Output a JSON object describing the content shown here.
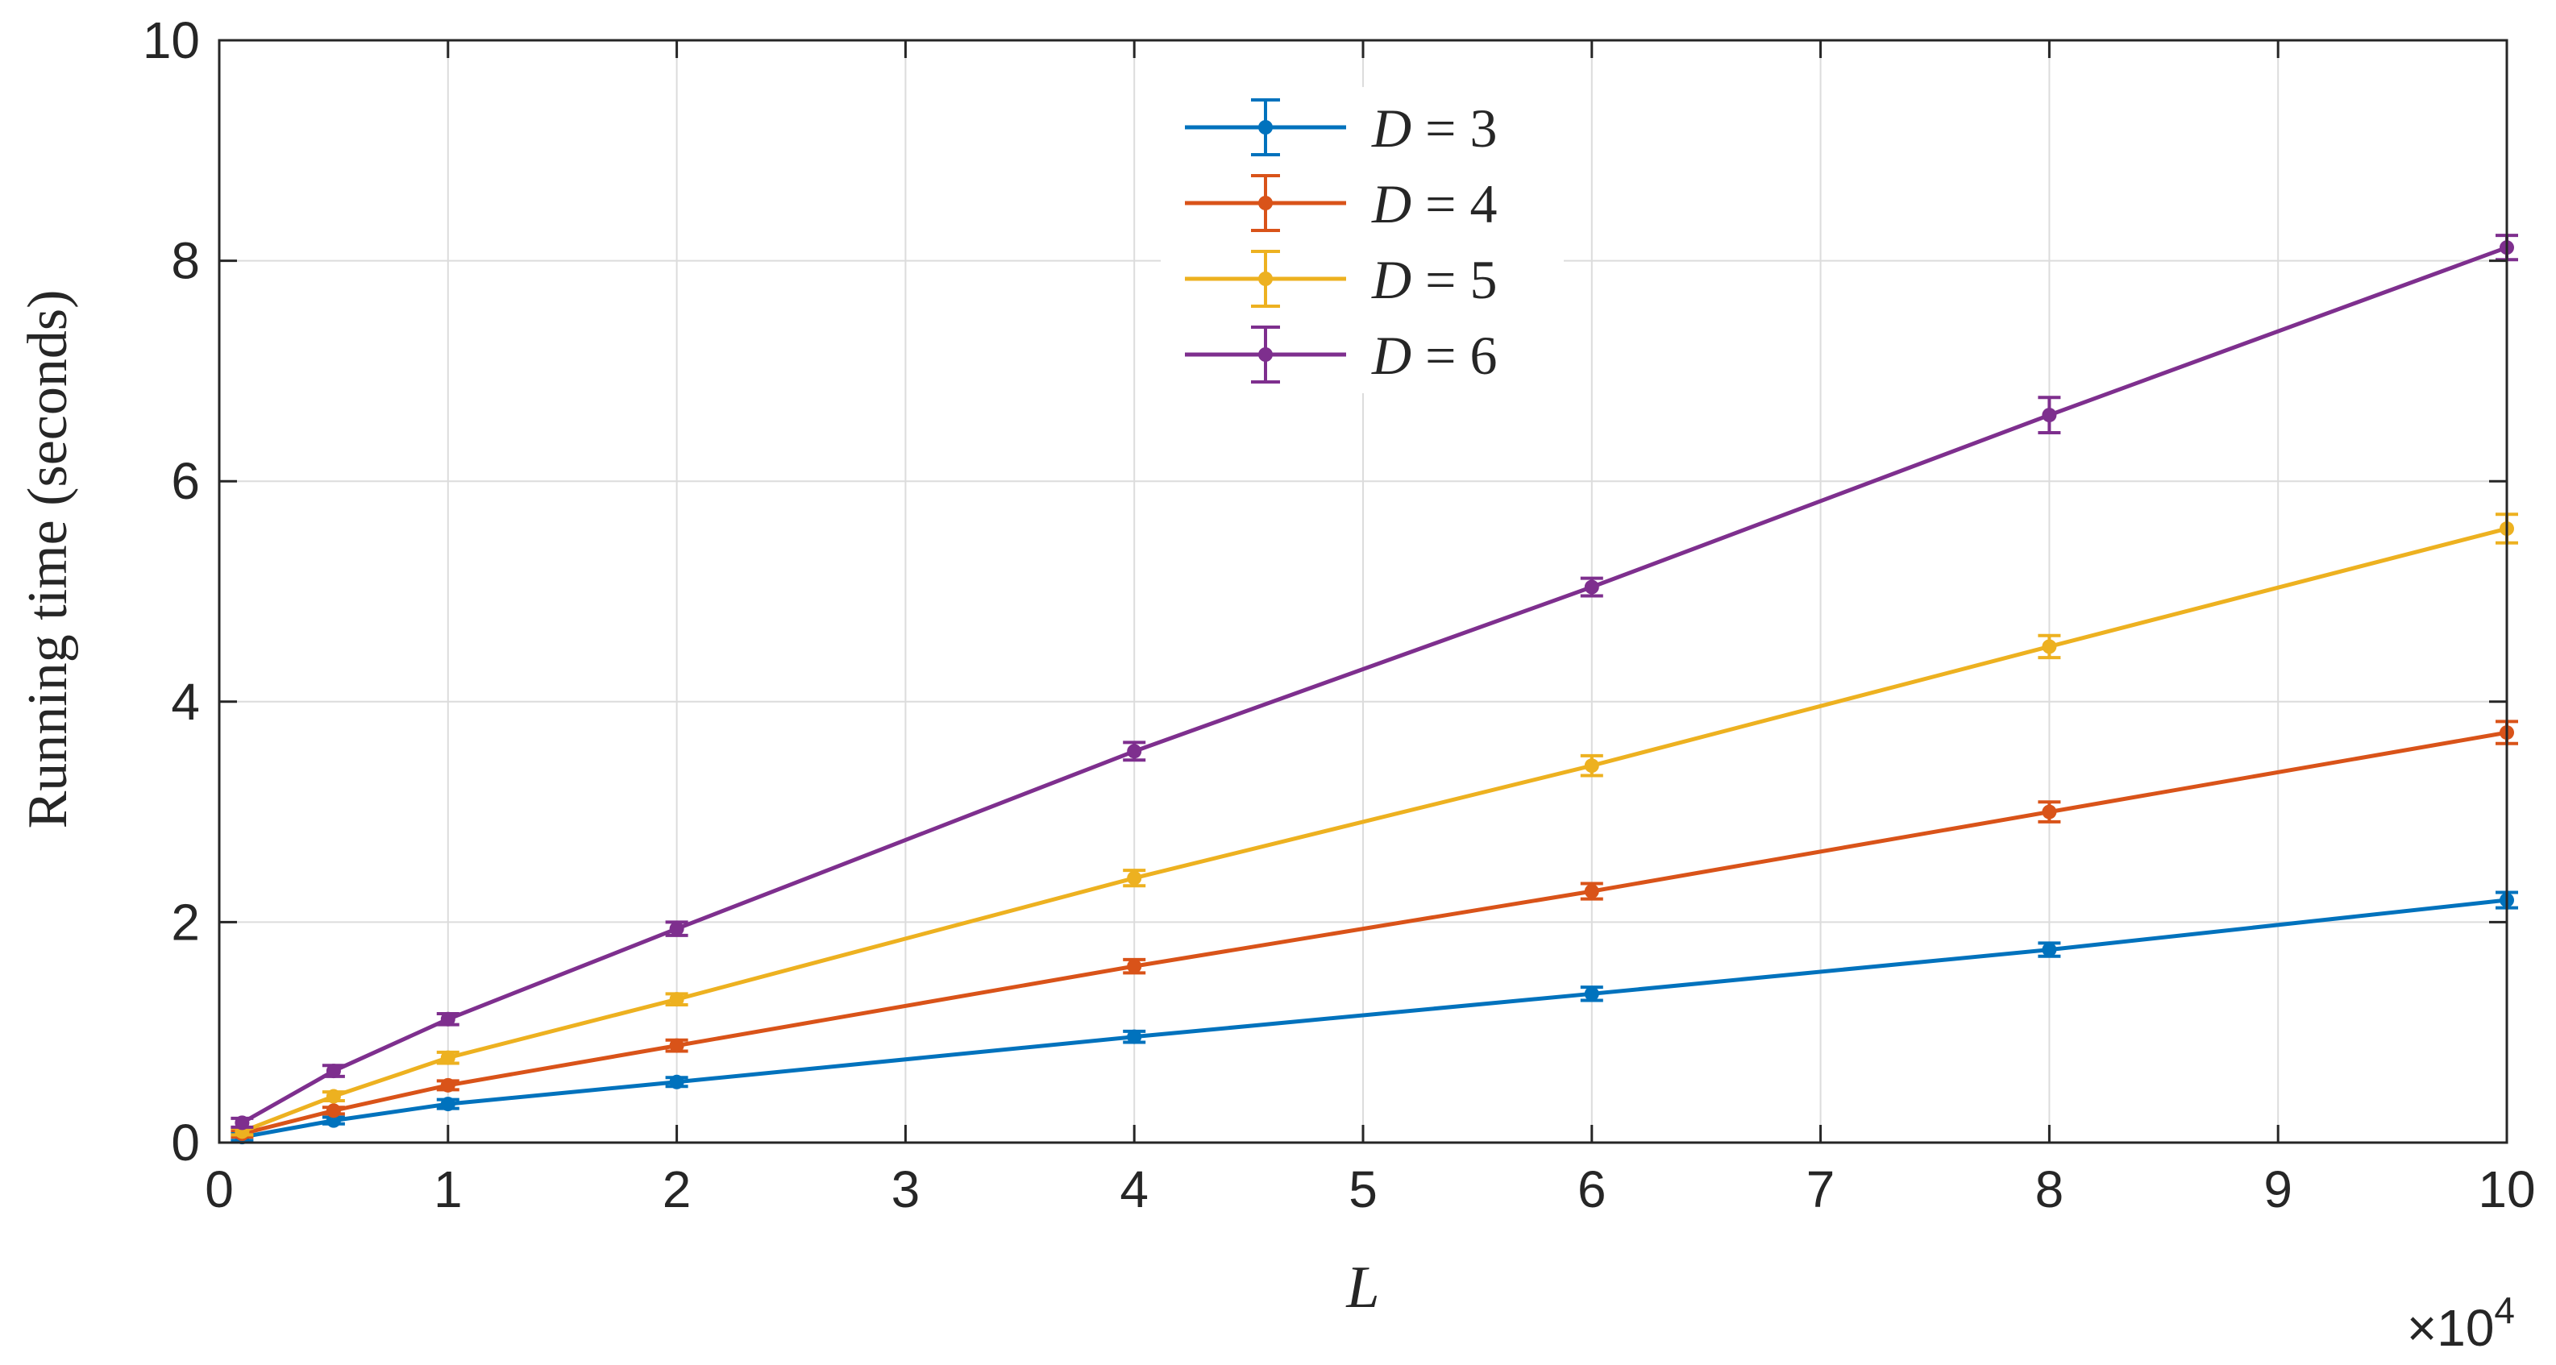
{
  "chart_data": {
    "type": "line",
    "xlabel": "L",
    "ylabel": "Running time (seconds)",
    "x_multiplier": {
      "base": "×10",
      "exponent": "4"
    },
    "xlim": [
      0,
      10
    ],
    "ylim": [
      0,
      10
    ],
    "xticks": [
      "0",
      "1",
      "2",
      "3",
      "4",
      "5",
      "6",
      "7",
      "8",
      "9",
      "10"
    ],
    "yticks": [
      "0",
      "2",
      "4",
      "6",
      "8",
      "10"
    ],
    "grid": true,
    "legend_position": "top-center",
    "x": [
      0.1,
      0.5,
      1,
      2,
      4,
      6,
      8,
      10
    ],
    "series": [
      {
        "name": "D = 3",
        "var": "D",
        "rel": "= 3",
        "color": "#0072BD",
        "values": [
          0.05,
          0.2,
          0.35,
          0.55,
          0.96,
          1.35,
          1.75,
          2.2
        ],
        "errors": [
          0.03,
          0.03,
          0.04,
          0.04,
          0.05,
          0.06,
          0.06,
          0.07
        ]
      },
      {
        "name": "D = 4",
        "var": "D",
        "rel": "= 4",
        "color": "#D95319",
        "values": [
          0.08,
          0.29,
          0.52,
          0.88,
          1.6,
          2.28,
          3.0,
          3.72
        ],
        "errors": [
          0.03,
          0.03,
          0.04,
          0.05,
          0.06,
          0.07,
          0.09,
          0.1
        ]
      },
      {
        "name": "D = 5",
        "var": "D",
        "rel": "= 5",
        "color": "#EDB120",
        "values": [
          0.1,
          0.42,
          0.77,
          1.3,
          2.4,
          3.42,
          4.5,
          5.57
        ],
        "errors": [
          0.03,
          0.04,
          0.05,
          0.05,
          0.07,
          0.09,
          0.1,
          0.13
        ]
      },
      {
        "name": "D = 6",
        "var": "D",
        "rel": "= 6",
        "color": "#7E2F8E",
        "values": [
          0.18,
          0.65,
          1.12,
          1.94,
          3.55,
          5.04,
          6.6,
          8.12
        ],
        "errors": [
          0.04,
          0.05,
          0.05,
          0.06,
          0.08,
          0.08,
          0.16,
          0.11
        ]
      }
    ]
  }
}
